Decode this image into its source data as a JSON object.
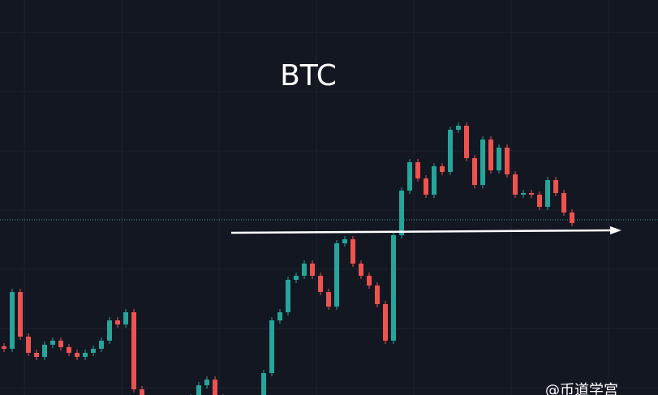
{
  "chart_data": {
    "type": "candlestick",
    "title": "BTC",
    "watermark": "@币道学宫",
    "up_color": "#26a69a",
    "down_color": "#ef5350",
    "ylim": [
      0,
      487
    ],
    "open": [
      60,
      57,
      127,
      72,
      52,
      47,
      62,
      67,
      59,
      52,
      47,
      52,
      57,
      67,
      92,
      87,
      102,
      7,
      -13,
      -18,
      -13,
      -15,
      -11,
      -8,
      -3,
      12,
      19,
      -3,
      -13,
      -11,
      -8,
      -13,
      -8,
      27,
      92,
      102,
      142,
      147,
      162,
      147,
      127,
      109,
      187,
      192,
      162,
      147,
      135,
      112,
      67,
      197,
      252,
      287,
      267,
      247,
      282,
      275,
      327,
      332,
      292,
      259,
      315,
      277,
      305,
      272,
      247,
      249,
      247,
      232,
      265,
      249,
      225
    ],
    "high": [
      64,
      131,
      131,
      76,
      56,
      66,
      71,
      71,
      63,
      56,
      56,
      61,
      71,
      96,
      96,
      106,
      106,
      11,
      -9,
      -9,
      -9,
      -7,
      -4,
      1,
      16,
      23,
      23,
      1,
      -7,
      -4,
      -4,
      -4,
      31,
      96,
      106,
      146,
      151,
      166,
      166,
      151,
      131,
      191,
      196,
      196,
      166,
      151,
      139,
      116,
      201,
      256,
      291,
      291,
      271,
      286,
      286,
      331,
      336,
      336,
      296,
      319,
      319,
      309,
      309,
      276,
      253,
      253,
      251,
      269,
      269,
      253,
      229
    ],
    "low": [
      53,
      53,
      68,
      48,
      43,
      43,
      58,
      55,
      48,
      43,
      43,
      48,
      53,
      63,
      83,
      83,
      3,
      -17,
      -22,
      -22,
      -19,
      -19,
      -15,
      -12,
      -7,
      8,
      -7,
      -17,
      -17,
      -15,
      -17,
      -17,
      -12,
      23,
      88,
      98,
      138,
      143,
      143,
      123,
      105,
      105,
      183,
      158,
      143,
      131,
      108,
      63,
      63,
      193,
      248,
      263,
      243,
      243,
      271,
      271,
      323,
      288,
      255,
      255,
      273,
      273,
      268,
      243,
      243,
      243,
      228,
      228,
      245,
      221,
      208
    ],
    "close": [
      57,
      127,
      72,
      52,
      47,
      62,
      67,
      59,
      52,
      47,
      52,
      57,
      67,
      92,
      87,
      102,
      7,
      -13,
      -18,
      -13,
      -15,
      -11,
      -8,
      -3,
      12,
      19,
      -3,
      -13,
      -11,
      -8,
      -13,
      -8,
      27,
      92,
      102,
      142,
      147,
      162,
      147,
      127,
      109,
      187,
      192,
      162,
      147,
      135,
      112,
      67,
      197,
      252,
      287,
      267,
      247,
      282,
      275,
      327,
      332,
      292,
      259,
      315,
      277,
      305,
      272,
      247,
      249,
      247,
      232,
      265,
      249,
      225,
      212
    ]
  }
}
